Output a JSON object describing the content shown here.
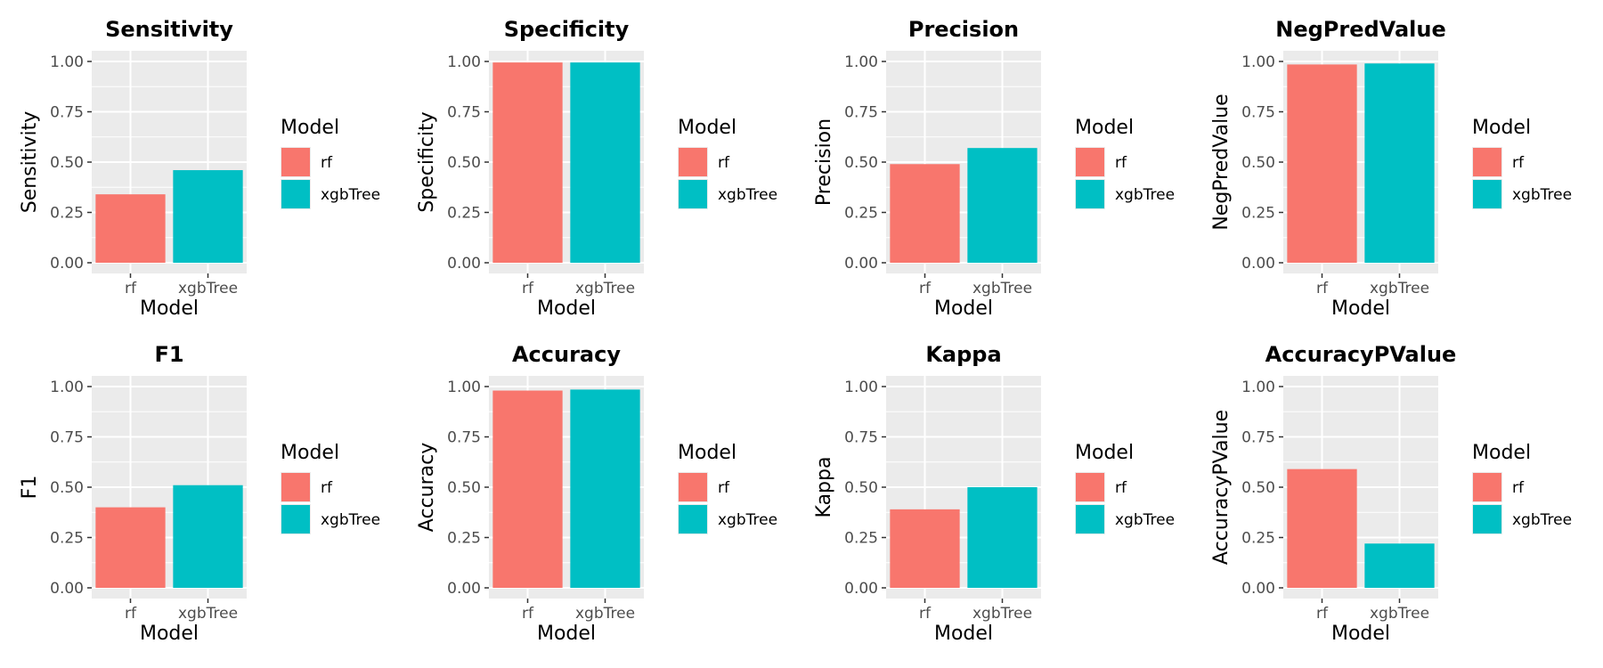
{
  "legend": {
    "title": "Model",
    "entries": [
      {
        "label": "rf",
        "color": "#F8766D"
      },
      {
        "label": "xgbTree",
        "color": "#00BFC4"
      }
    ]
  },
  "colors": {
    "panel_bg": "#EBEBEB",
    "grid": "#FFFFFF",
    "text": "#000000",
    "tick_text": "#4D4D4D"
  },
  "chart_data": [
    {
      "type": "bar",
      "title": "Sensitivity",
      "xlabel": "Model",
      "ylabel": "Sensitivity",
      "categories": [
        "rf",
        "xgbTree"
      ],
      "values": [
        0.34,
        0.46
      ],
      "ylim": [
        0,
        1
      ],
      "yticks": [
        "0.00",
        "0.25",
        "0.50",
        "0.75",
        "1.00"
      ],
      "grid": true,
      "legend_position": "right"
    },
    {
      "type": "bar",
      "title": "Specificity",
      "xlabel": "Model",
      "ylabel": "Specificity",
      "categories": [
        "rf",
        "xgbTree"
      ],
      "values": [
        0.995,
        0.995
      ],
      "ylim": [
        0,
        1
      ],
      "yticks": [
        "0.00",
        "0.25",
        "0.50",
        "0.75",
        "1.00"
      ],
      "grid": true,
      "legend_position": "right"
    },
    {
      "type": "bar",
      "title": "Precision",
      "xlabel": "Model",
      "ylabel": "Precision",
      "categories": [
        "rf",
        "xgbTree"
      ],
      "values": [
        0.49,
        0.57
      ],
      "ylim": [
        0,
        1
      ],
      "yticks": [
        "0.00",
        "0.25",
        "0.50",
        "0.75",
        "1.00"
      ],
      "grid": true,
      "legend_position": "right"
    },
    {
      "type": "bar",
      "title": "NegPredValue",
      "xlabel": "Model",
      "ylabel": "NegPredValue",
      "categories": [
        "rf",
        "xgbTree"
      ],
      "values": [
        0.985,
        0.99
      ],
      "ylim": [
        0,
        1
      ],
      "yticks": [
        "0.00",
        "0.25",
        "0.50",
        "0.75",
        "1.00"
      ],
      "grid": true,
      "legend_position": "right"
    },
    {
      "type": "bar",
      "title": "F1",
      "xlabel": "Model",
      "ylabel": "F1",
      "categories": [
        "rf",
        "xgbTree"
      ],
      "values": [
        0.4,
        0.51
      ],
      "ylim": [
        0,
        1
      ],
      "yticks": [
        "0.00",
        "0.25",
        "0.50",
        "0.75",
        "1.00"
      ],
      "grid": true,
      "legend_position": "right"
    },
    {
      "type": "bar",
      "title": "Accuracy",
      "xlabel": "Model",
      "ylabel": "Accuracy",
      "categories": [
        "rf",
        "xgbTree"
      ],
      "values": [
        0.98,
        0.985
      ],
      "ylim": [
        0,
        1
      ],
      "yticks": [
        "0.00",
        "0.25",
        "0.50",
        "0.75",
        "1.00"
      ],
      "grid": true,
      "legend_position": "right"
    },
    {
      "type": "bar",
      "title": "Kappa",
      "xlabel": "Model",
      "ylabel": "Kappa",
      "categories": [
        "rf",
        "xgbTree"
      ],
      "values": [
        0.39,
        0.5
      ],
      "ylim": [
        0,
        1
      ],
      "yticks": [
        "0.00",
        "0.25",
        "0.50",
        "0.75",
        "1.00"
      ],
      "grid": true,
      "legend_position": "right"
    },
    {
      "type": "bar",
      "title": "AccuracyPValue",
      "xlabel": "Model",
      "ylabel": "AccuracyPValue",
      "categories": [
        "rf",
        "xgbTree"
      ],
      "values": [
        0.59,
        0.22
      ],
      "ylim": [
        0,
        1
      ],
      "yticks": [
        "0.00",
        "0.25",
        "0.50",
        "0.75",
        "1.00"
      ],
      "grid": true,
      "legend_position": "right"
    }
  ]
}
